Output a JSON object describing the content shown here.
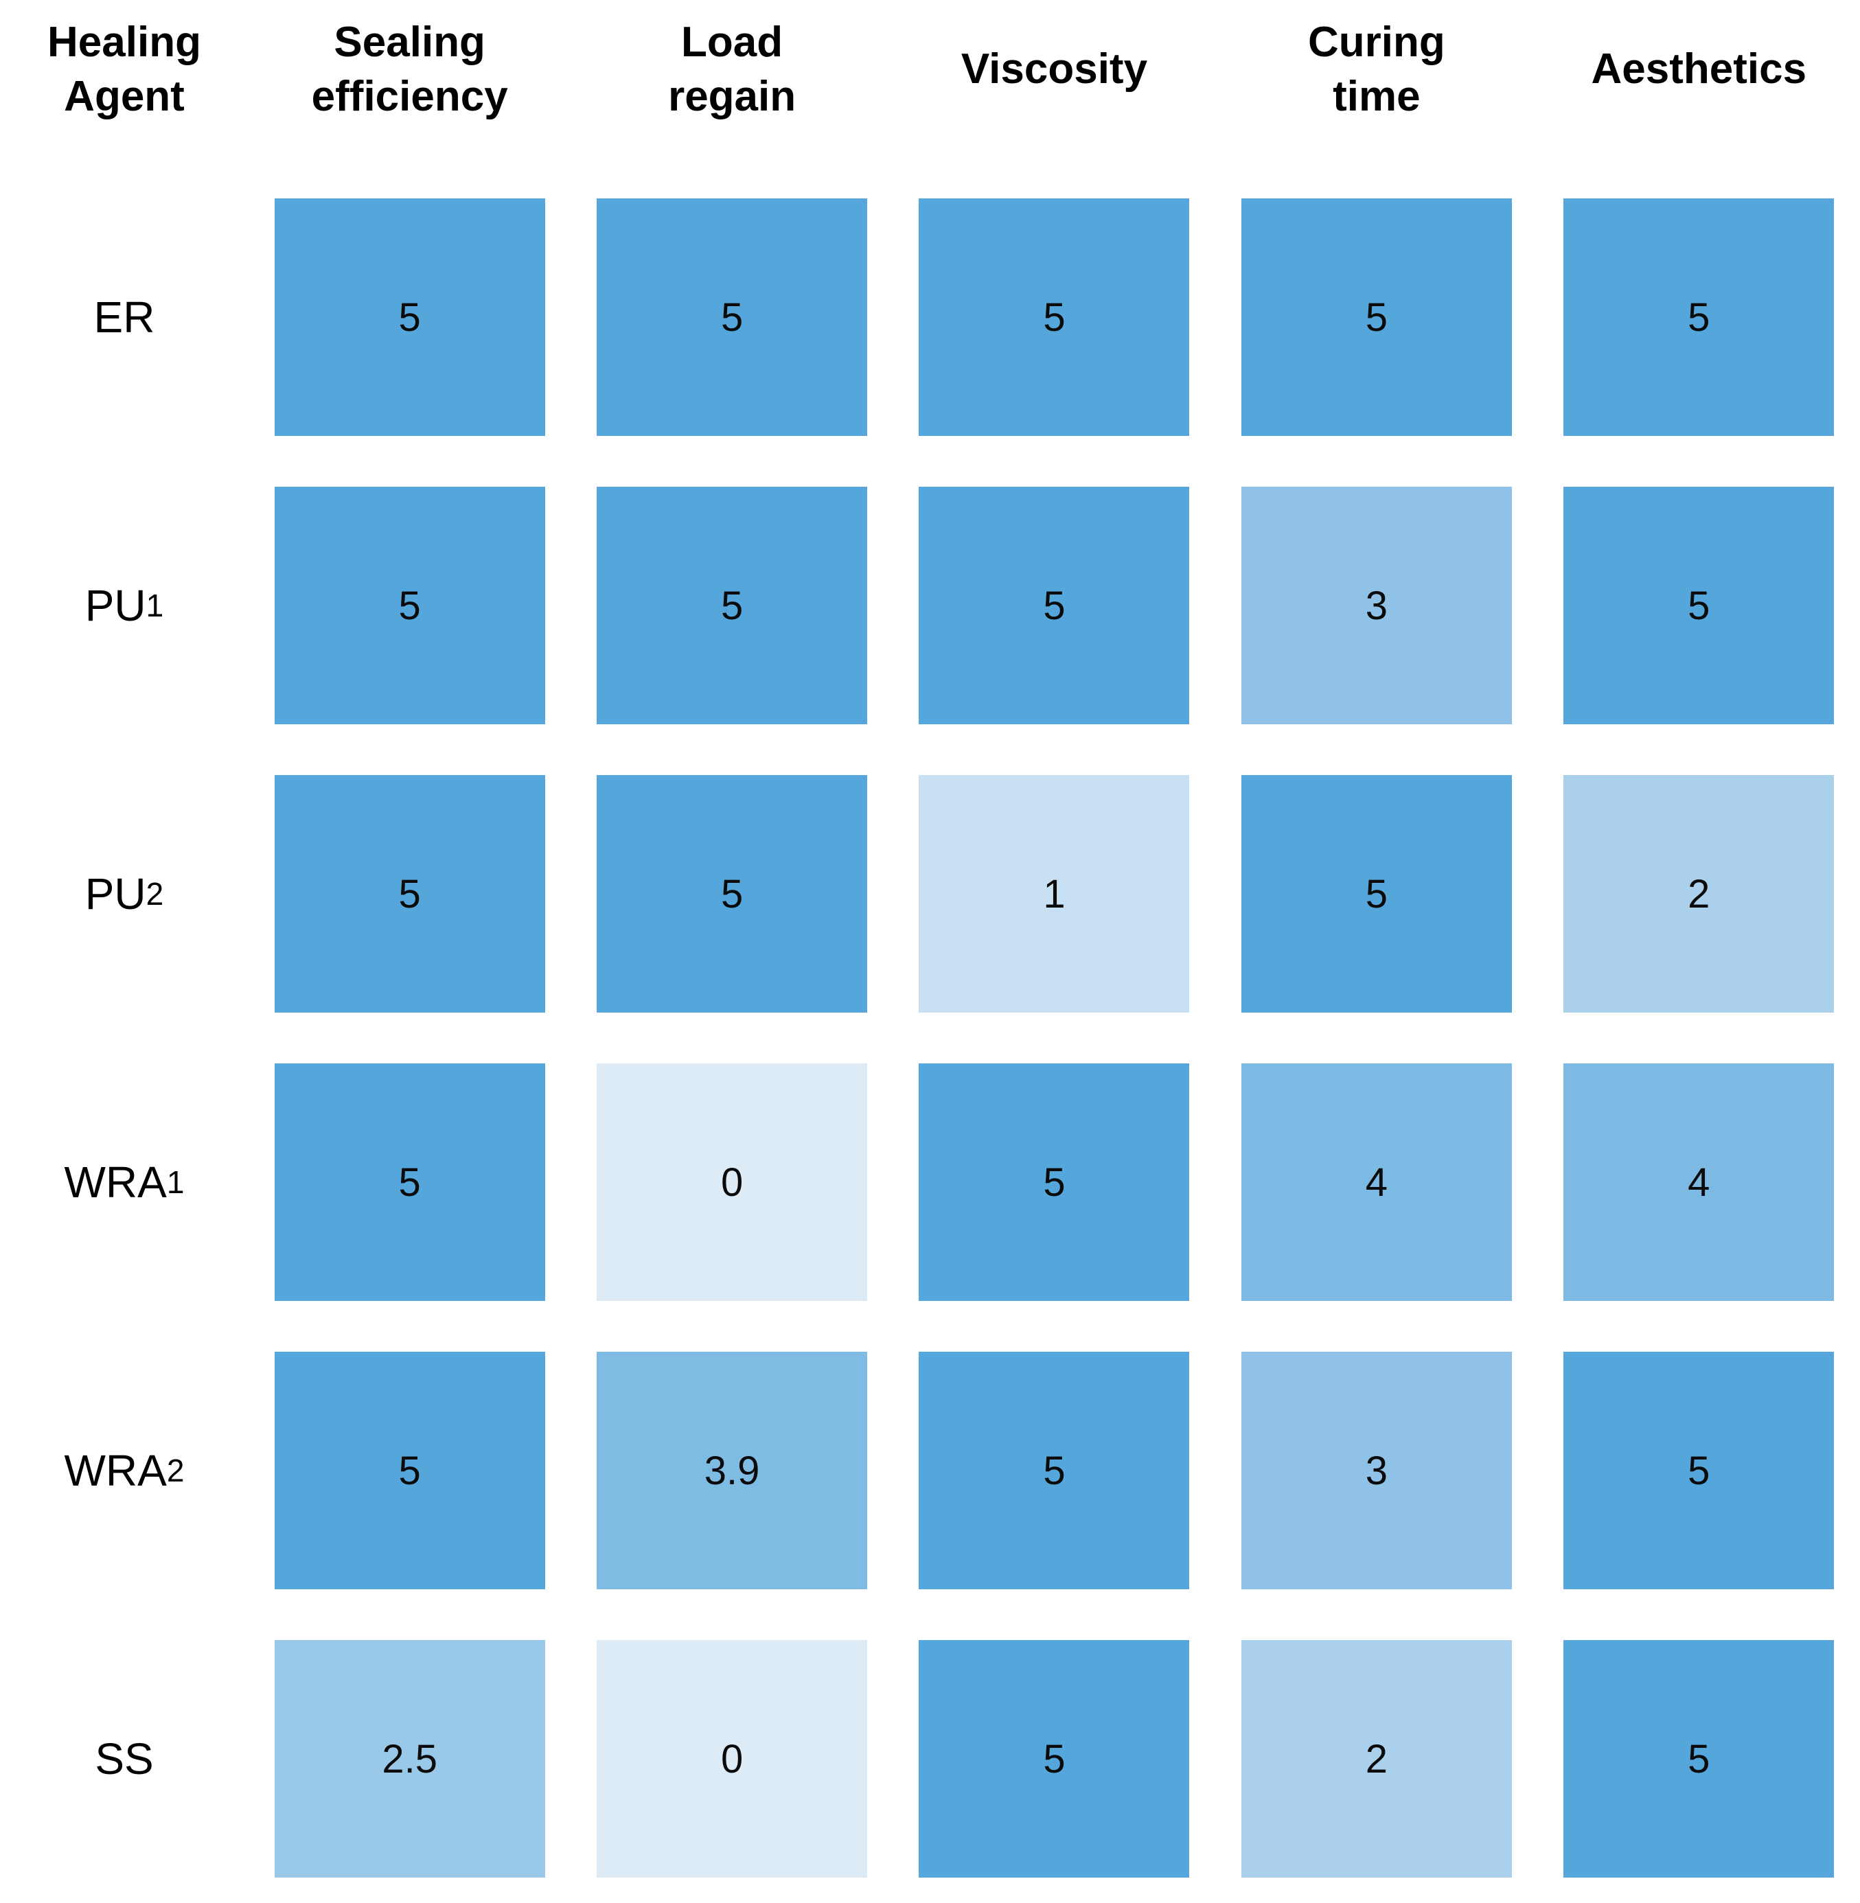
{
  "figure": {
    "corner_header": "Healing\nAgent",
    "columns": [
      "Sealing\nefficiency",
      "Load\nregain",
      "Viscosity",
      "Curing\ntime",
      "Aesthetics"
    ],
    "rows": [
      {
        "label": {
          "base": "ER",
          "sub": ""
        },
        "values": [
          "5",
          "5",
          "5",
          "5",
          "5"
        ],
        "colors": [
          "#55A7DB",
          "#55A7DB",
          "#55A7DB",
          "#55A7DB",
          "#55A7DB"
        ]
      },
      {
        "label": {
          "base": "PU",
          "sub": "1"
        },
        "values": [
          "5",
          "5",
          "5",
          "3",
          "5"
        ],
        "colors": [
          "#55A7DB",
          "#55A7DB",
          "#55A7DB",
          "#8FC2E6",
          "#55A7DB"
        ]
      },
      {
        "label": {
          "base": "PU",
          "sub": "2"
        },
        "values": [
          "5",
          "5",
          "1",
          "5",
          "2"
        ],
        "colors": [
          "#55A7DB",
          "#55A7DB",
          "#C8E0F3",
          "#55A7DB",
          "#AAD0EC"
        ]
      },
      {
        "label": {
          "base": "WRA",
          "sub": "1"
        },
        "values": [
          "5",
          "0",
          "5",
          "4",
          "4"
        ],
        "colors": [
          "#55A7DB",
          "#DDEBF7",
          "#55A7DB",
          "#7CBAE3",
          "#7CBAE3"
        ]
      },
      {
        "label": {
          "base": "WRA",
          "sub": "2"
        },
        "values": [
          "5",
          "3.9",
          "5",
          "3",
          "5"
        ],
        "colors": [
          "#55A7DB",
          "#7FBCE4",
          "#55A7DB",
          "#8FC2E6",
          "#55A7DB"
        ]
      },
      {
        "label": {
          "base": "SS",
          "sub": ""
        },
        "values": [
          "2.5",
          "0",
          "5",
          "2",
          "5"
        ],
        "colors": [
          "#9AC8E9",
          "#DDEBF7",
          "#55A7DB",
          "#AAD0EC",
          "#55A7DB"
        ]
      }
    ],
    "background": "#FFFFFF",
    "text_color": "#000000"
  },
  "chart_data": {
    "type": "heatmap",
    "title": "",
    "x_labels": [
      "Sealing efficiency",
      "Load regain",
      "Viscosity",
      "Curing time",
      "Aesthetics"
    ],
    "y_labels": [
      "ER",
      "PU1",
      "PU2",
      "WRA1",
      "WRA2",
      "SS"
    ],
    "values": [
      [
        5,
        5,
        5,
        5,
        5
      ],
      [
        5,
        5,
        5,
        3,
        5
      ],
      [
        5,
        5,
        1,
        5,
        2
      ],
      [
        5,
        0,
        5,
        4,
        4
      ],
      [
        5,
        3.9,
        5,
        3,
        5
      ],
      [
        2.5,
        0,
        5,
        2,
        5
      ]
    ],
    "value_range": [
      0,
      5
    ],
    "colormap": {
      "low": "#DDEBF7",
      "high": "#55A7DB"
    },
    "legend": "none",
    "grid": "off",
    "cell_value_labels": "on"
  }
}
